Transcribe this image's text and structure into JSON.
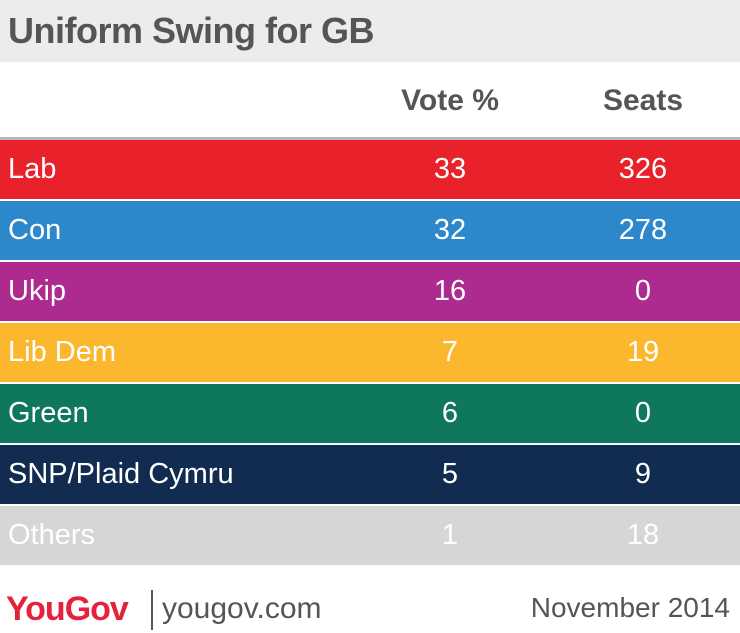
{
  "title": "Uniform Swing for GB",
  "columns": {
    "vote": "Vote %",
    "seats": "Seats"
  },
  "chart_data": {
    "type": "table",
    "title": "Uniform Swing for GB",
    "columns": [
      "Vote %",
      "Seats"
    ],
    "rows": [
      {
        "party": "Lab",
        "vote": "33",
        "seats": "326",
        "color": "#e8212a"
      },
      {
        "party": "Con",
        "vote": "32",
        "seats": "278",
        "color": "#2c87cb"
      },
      {
        "party": "Ukip",
        "vote": "16",
        "seats": "0",
        "color": "#ad2a8f"
      },
      {
        "party": "Lib Dem",
        "vote": "7",
        "seats": "19",
        "color": "#fbb82f"
      },
      {
        "party": "Green",
        "vote": "6",
        "seats": "0",
        "color": "#0e775e"
      },
      {
        "party": "SNP/Plaid Cymru",
        "vote": "5",
        "seats": "9",
        "color": "#122c51"
      },
      {
        "party": "Others",
        "vote": "1",
        "seats": "18",
        "color": "#d6d6d6"
      }
    ]
  },
  "footer": {
    "brand": "YouGov",
    "site": "yougov.com",
    "date": "November 2014"
  }
}
